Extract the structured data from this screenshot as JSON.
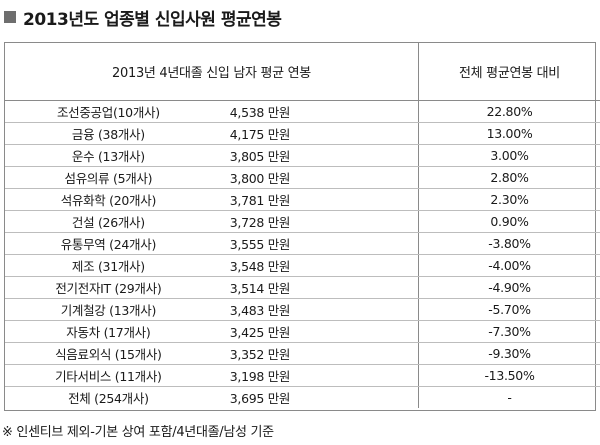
{
  "title": "2013년도 업종별 신입사원 평균연봉",
  "table": {
    "headers": [
      "2013년 4년대졸 신입 남자 평균 연봉",
      "전체 평균연봉 대비"
    ],
    "rows": [
      {
        "industry": "조선중공업(10개사)",
        "salary": "4,538 만원",
        "ratio": "22.80%"
      },
      {
        "industry": "금융 (38개사)",
        "salary": "4,175 만원",
        "ratio": "13.00%"
      },
      {
        "industry": "운수 (13개사)",
        "salary": "3,805 만원",
        "ratio": "3.00%"
      },
      {
        "industry": "섬유의류 (5개사)",
        "salary": "3,800 만원",
        "ratio": "2.80%"
      },
      {
        "industry": "석유화학 (20개사)",
        "salary": "3,781 만원",
        "ratio": "2.30%"
      },
      {
        "industry": "건설 (26개사)",
        "salary": "3,728 만원",
        "ratio": "0.90%"
      },
      {
        "industry": "유통무역 (24개사)",
        "salary": "3,555 만원",
        "ratio": "-3.80%"
      },
      {
        "industry": "제조 (31개사)",
        "salary": "3,548 만원",
        "ratio": "-4.00%"
      },
      {
        "industry": "전기전자IT (29개사)",
        "salary": "3,514 만원",
        "ratio": "-4.90%"
      },
      {
        "industry": "기계철강 (13개사)",
        "salary": "3,483 만원",
        "ratio": "-5.70%"
      },
      {
        "industry": "자동차 (17개사)",
        "salary": "3,425 만원",
        "ratio": "-7.30%"
      },
      {
        "industry": "식음료외식 (15개사)",
        "salary": "3,352 만원",
        "ratio": "-9.30%"
      },
      {
        "industry": "기타서비스 (11개사)",
        "salary": "3,198 만원",
        "ratio": "-13.50%"
      },
      {
        "industry": "전체 (254개사)",
        "salary": "3,695 만원",
        "ratio": "-"
      }
    ]
  },
  "footnote": "※ 인센티브 제외-기본 상여 포함/4년대졸/남성 기준"
}
